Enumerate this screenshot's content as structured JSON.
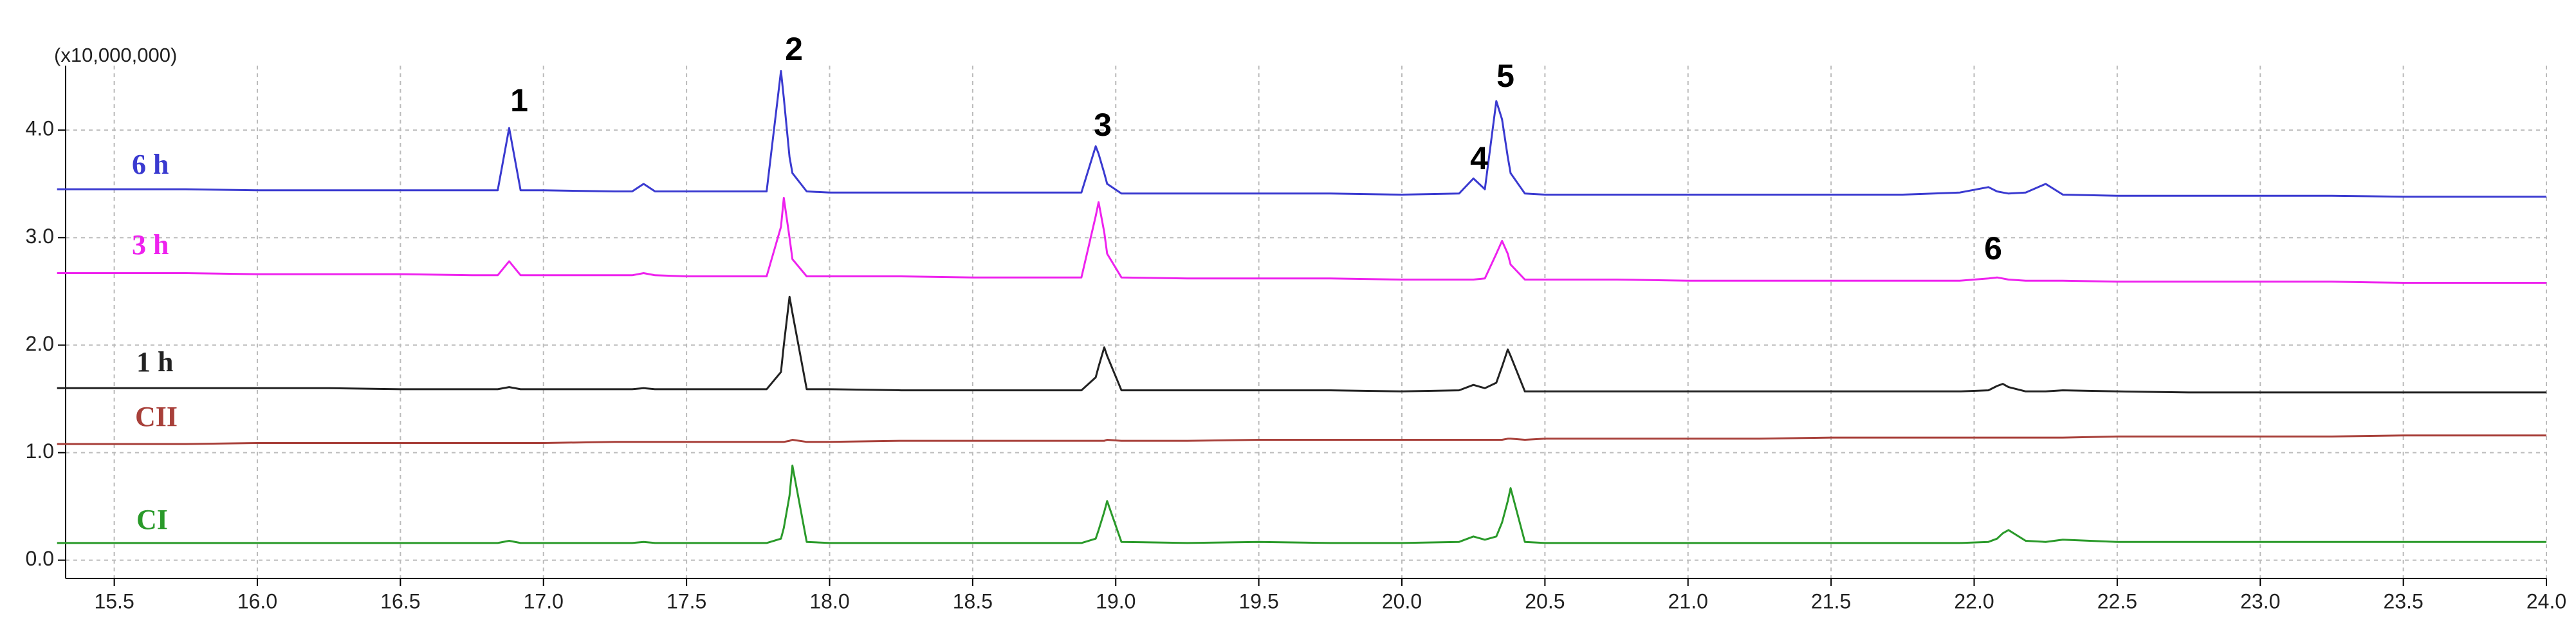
{
  "chart_data": {
    "type": "line",
    "y_axis_label": "(x10,000,000)",
    "xlim": [
      15.33,
      24.0
    ],
    "ylim": [
      -0.17,
      4.6
    ],
    "xticks": [
      {
        "value": 15.5,
        "label": "15.5"
      },
      {
        "value": 16,
        "label": "16.0"
      },
      {
        "value": 16.5,
        "label": "16.5"
      },
      {
        "value": 17,
        "label": "17.0"
      },
      {
        "value": 17.5,
        "label": "17.5"
      },
      {
        "value": 18,
        "label": "18.0"
      },
      {
        "value": 18.5,
        "label": "18.5"
      },
      {
        "value": 19,
        "label": "19.0"
      },
      {
        "value": 19.5,
        "label": "19.5"
      },
      {
        "value": 20,
        "label": "20.0"
      },
      {
        "value": 20.5,
        "label": "20.5"
      },
      {
        "value": 21,
        "label": "21.0"
      },
      {
        "value": 21.5,
        "label": "21.5"
      },
      {
        "value": 22,
        "label": "22.0"
      },
      {
        "value": 22.5,
        "label": "22.5"
      },
      {
        "value": 23,
        "label": "23.0"
      },
      {
        "value": 23.5,
        "label": "23.5"
      },
      {
        "value": 24,
        "label": "24.0"
      }
    ],
    "yticks": [
      {
        "value": 0,
        "label": "0.0"
      },
      {
        "value": 1,
        "label": "1.0"
      },
      {
        "value": 2,
        "label": "2.0"
      },
      {
        "value": 3,
        "label": "3.0"
      },
      {
        "value": 4,
        "label": "4.0"
      }
    ],
    "grid": true,
    "annotations": [
      "1",
      "2",
      "3",
      "4",
      "5",
      "6"
    ],
    "x": [
      15.3,
      15.5,
      15.75,
      16.0,
      16.25,
      16.5,
      16.75,
      16.84,
      16.88,
      16.92,
      17.0,
      17.25,
      17.31,
      17.35,
      17.39,
      17.5,
      17.78,
      17.83,
      17.84,
      17.86,
      17.87,
      17.92,
      18.0,
      18.25,
      18.5,
      18.75,
      18.88,
      18.93,
      18.94,
      18.96,
      18.97,
      19.02,
      19.25,
      19.5,
      19.75,
      20.0,
      20.2,
      20.25,
      20.29,
      20.33,
      20.35,
      20.37,
      20.38,
      20.43,
      20.5,
      20.75,
      21.0,
      21.25,
      21.5,
      21.75,
      21.95,
      22.05,
      22.08,
      22.1,
      22.12,
      22.18,
      22.25,
      22.31,
      22.5,
      22.75,
      23.0,
      23.25,
      23.5,
      23.75,
      24.0
    ],
    "series": [
      {
        "name": "6 h",
        "color": "#3a3ad0",
        "values": [
          3.45,
          3.45,
          3.45,
          3.44,
          3.44,
          3.44,
          3.44,
          3.44,
          4.02,
          3.44,
          3.44,
          3.43,
          3.43,
          3.5,
          3.43,
          3.43,
          3.43,
          4.55,
          4.3,
          3.75,
          3.6,
          3.43,
          3.42,
          3.42,
          3.42,
          3.42,
          3.42,
          3.85,
          3.78,
          3.6,
          3.5,
          3.41,
          3.41,
          3.41,
          3.41,
          3.4,
          3.41,
          3.55,
          3.45,
          4.27,
          4.1,
          3.75,
          3.6,
          3.41,
          3.4,
          3.4,
          3.4,
          3.4,
          3.4,
          3.4,
          3.42,
          3.47,
          3.43,
          3.42,
          3.41,
          3.42,
          3.5,
          3.4,
          3.39,
          3.39,
          3.39,
          3.39,
          3.38,
          3.38,
          3.38
        ]
      },
      {
        "name": "3 h",
        "color": "#ee22ee",
        "values": [
          2.67,
          2.67,
          2.67,
          2.66,
          2.66,
          2.66,
          2.65,
          2.65,
          2.78,
          2.65,
          2.65,
          2.65,
          2.65,
          2.67,
          2.65,
          2.64,
          2.64,
          3.1,
          3.37,
          3.0,
          2.8,
          2.64,
          2.64,
          2.64,
          2.63,
          2.63,
          2.63,
          3.2,
          3.33,
          3.05,
          2.85,
          2.63,
          2.62,
          2.62,
          2.62,
          2.61,
          2.61,
          2.61,
          2.62,
          2.85,
          2.97,
          2.85,
          2.75,
          2.61,
          2.61,
          2.61,
          2.6,
          2.6,
          2.6,
          2.6,
          2.6,
          2.62,
          2.63,
          2.62,
          2.61,
          2.6,
          2.6,
          2.6,
          2.59,
          2.59,
          2.59,
          2.59,
          2.58,
          2.58,
          2.58
        ]
      },
      {
        "name": "1 h",
        "color": "#222222",
        "values": [
          1.6,
          1.6,
          1.6,
          1.6,
          1.6,
          1.59,
          1.59,
          1.59,
          1.61,
          1.59,
          1.59,
          1.59,
          1.59,
          1.6,
          1.59,
          1.59,
          1.59,
          1.75,
          2.0,
          2.45,
          2.3,
          1.59,
          1.59,
          1.58,
          1.58,
          1.58,
          1.58,
          1.7,
          1.8,
          1.98,
          1.9,
          1.58,
          1.58,
          1.58,
          1.58,
          1.57,
          1.58,
          1.63,
          1.6,
          1.65,
          1.8,
          1.96,
          1.9,
          1.57,
          1.57,
          1.57,
          1.57,
          1.57,
          1.57,
          1.57,
          1.57,
          1.58,
          1.62,
          1.64,
          1.61,
          1.57,
          1.57,
          1.58,
          1.57,
          1.56,
          1.56,
          1.56,
          1.56,
          1.56,
          1.56
        ]
      },
      {
        "name": "CII",
        "color": "#a8403a",
        "values": [
          1.08,
          1.08,
          1.08,
          1.09,
          1.09,
          1.09,
          1.09,
          1.09,
          1.09,
          1.09,
          1.09,
          1.1,
          1.1,
          1.1,
          1.1,
          1.1,
          1.1,
          1.1,
          1.1,
          1.11,
          1.12,
          1.1,
          1.1,
          1.11,
          1.11,
          1.11,
          1.11,
          1.11,
          1.11,
          1.11,
          1.12,
          1.11,
          1.11,
          1.12,
          1.12,
          1.12,
          1.12,
          1.12,
          1.12,
          1.12,
          1.12,
          1.13,
          1.13,
          1.12,
          1.13,
          1.13,
          1.13,
          1.13,
          1.14,
          1.14,
          1.14,
          1.14,
          1.14,
          1.14,
          1.14,
          1.14,
          1.14,
          1.14,
          1.15,
          1.15,
          1.15,
          1.15,
          1.16,
          1.16,
          1.16
        ]
      },
      {
        "name": "CI",
        "color": "#2a9a2a",
        "values": [
          0.16,
          0.16,
          0.16,
          0.16,
          0.16,
          0.16,
          0.16,
          0.16,
          0.18,
          0.16,
          0.16,
          0.16,
          0.16,
          0.17,
          0.16,
          0.16,
          0.16,
          0.2,
          0.3,
          0.6,
          0.88,
          0.17,
          0.16,
          0.16,
          0.16,
          0.16,
          0.16,
          0.2,
          0.28,
          0.45,
          0.55,
          0.17,
          0.16,
          0.17,
          0.16,
          0.16,
          0.17,
          0.22,
          0.19,
          0.22,
          0.35,
          0.55,
          0.67,
          0.17,
          0.16,
          0.16,
          0.16,
          0.16,
          0.16,
          0.16,
          0.16,
          0.17,
          0.2,
          0.25,
          0.28,
          0.18,
          0.17,
          0.19,
          0.17,
          0.17,
          0.17,
          0.17,
          0.17,
          0.17,
          0.17
        ]
      }
    ]
  }
}
